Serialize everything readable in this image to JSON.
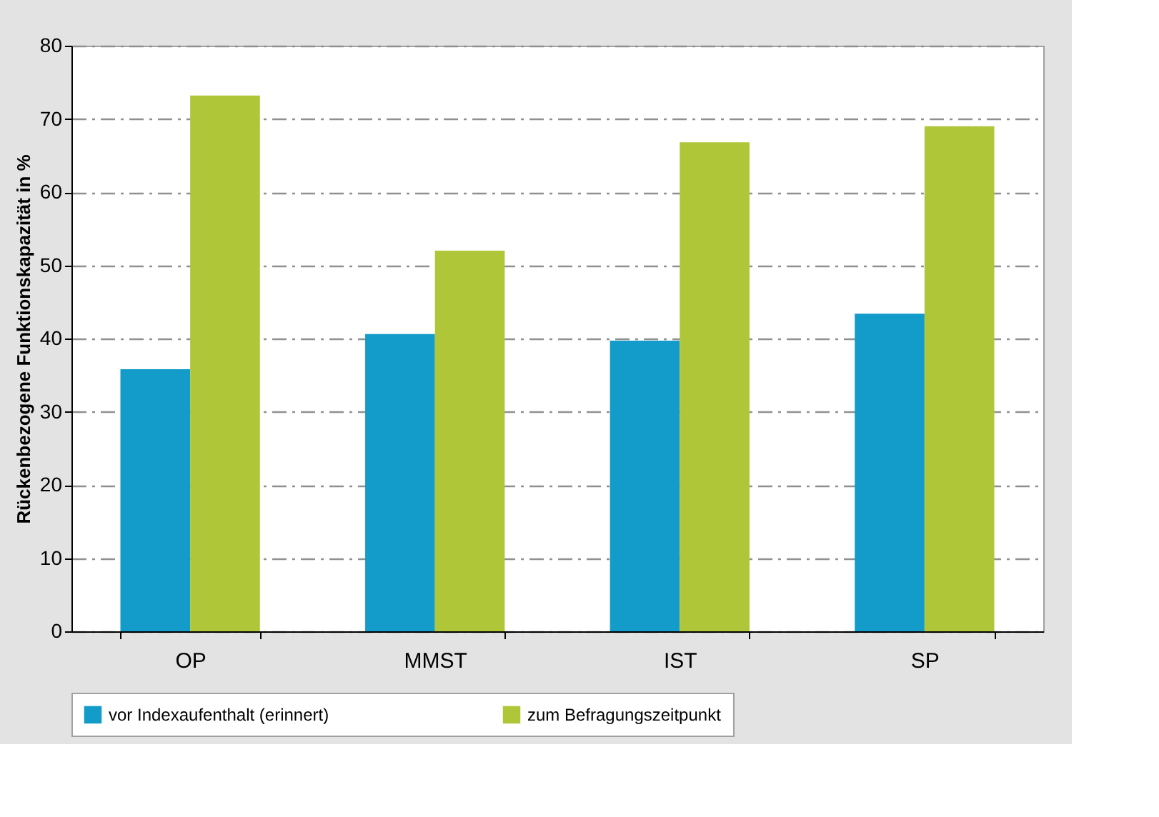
{
  "chart_data": {
    "type": "bar",
    "ylabel": "Rückenbezogene Funktionskapazität in %",
    "categories": [
      "OP",
      "MMST",
      "IST",
      "SP"
    ],
    "series": [
      {
        "name": "vor Indexaufenthalt (erinnert)",
        "color": "#139bc9",
        "values": [
          35.8,
          40.6,
          39.7,
          43.4
        ]
      },
      {
        "name": "zum Befragungszeitpunkt",
        "color": "#b0c639",
        "values": [
          73.2,
          52.0,
          66.8,
          69.0
        ]
      }
    ],
    "ylim": [
      0,
      80
    ],
    "yticks": [
      0,
      10,
      20,
      30,
      40,
      50,
      60,
      70,
      80
    ],
    "grid": "y",
    "legend": "bottom"
  }
}
